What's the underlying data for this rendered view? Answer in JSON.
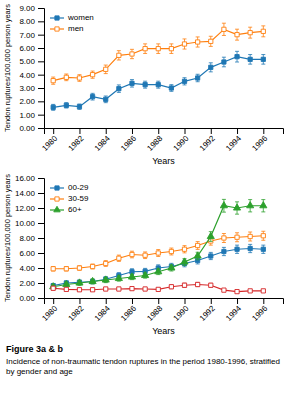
{
  "chart_data": [
    {
      "type": "line",
      "xlabel": "Years",
      "ylabel": "Tendon ruptures/100,000 person years",
      "x": [
        1980,
        1981,
        1982,
        1983,
        1984,
        1985,
        1986,
        1987,
        1988,
        1989,
        1990,
        1991,
        1992,
        1993,
        1994,
        1995,
        1996
      ],
      "xlim": [
        1979.3,
        1997.5
      ],
      "xticks": [
        1980,
        1982,
        1984,
        1986,
        1988,
        1990,
        1992,
        1994,
        1996
      ],
      "ylim": [
        0,
        9
      ],
      "yticks": [
        {
          "value": 0,
          "label": "0.00"
        },
        {
          "value": 1,
          "label": "1.00"
        },
        {
          "value": 2,
          "label": "2.00"
        },
        {
          "value": 3,
          "label": "3.00"
        },
        {
          "value": 4,
          "label": "4.00"
        },
        {
          "value": 5,
          "label": "5.00"
        },
        {
          "value": 6,
          "label": "6.00"
        },
        {
          "value": 7,
          "label": "7.00"
        },
        {
          "value": 8,
          "label": "8.00"
        },
        {
          "value": 9,
          "label": "9.00"
        }
      ],
      "grid": false,
      "legend": "upper left",
      "series": [
        {
          "name": "women",
          "marker": "square",
          "values": [
            1.55,
            1.7,
            1.6,
            2.35,
            2.15,
            2.95,
            3.35,
            3.25,
            3.25,
            3.0,
            3.5,
            3.75,
            4.55,
            4.95,
            5.35,
            5.15,
            5.15
          ],
          "errors": [
            0.22,
            0.2,
            0.2,
            0.25,
            0.25,
            0.28,
            0.28,
            0.26,
            0.26,
            0.25,
            0.27,
            0.28,
            0.34,
            0.36,
            0.4,
            0.36,
            0.36
          ]
        },
        {
          "name": "men",
          "marker": "open-square",
          "values": [
            3.55,
            3.8,
            3.75,
            4.0,
            4.4,
            5.45,
            5.55,
            5.95,
            5.95,
            5.95,
            6.3,
            6.45,
            6.5,
            7.4,
            7.0,
            7.15,
            7.25
          ],
          "errors": [
            0.27,
            0.25,
            0.25,
            0.27,
            0.32,
            0.35,
            0.35,
            0.36,
            0.36,
            0.36,
            0.38,
            0.38,
            0.38,
            0.46,
            0.41,
            0.41,
            0.41
          ]
        }
      ]
    },
    {
      "type": "line",
      "xlabel": "Years",
      "ylabel": "Tendon ruptures/100,000 person years",
      "x": [
        1980,
        1981,
        1982,
        1983,
        1984,
        1985,
        1986,
        1987,
        1988,
        1989,
        1990,
        1991,
        1992,
        1993,
        1994,
        1995,
        1996
      ],
      "xlim": [
        1979.3,
        1997.5
      ],
      "xticks": [
        1980,
        1982,
        1984,
        1986,
        1988,
        1990,
        1992,
        1994,
        1996
      ],
      "ylim": [
        0,
        16
      ],
      "yticks": [
        {
          "value": 0,
          "label": "0.00"
        },
        {
          "value": 2,
          "label": "2.00"
        },
        {
          "value": 4,
          "label": "4.00"
        },
        {
          "value": 6,
          "label": "6.00"
        },
        {
          "value": 8,
          "label": "8.00"
        },
        {
          "value": 10,
          "label": "10.00"
        },
        {
          "value": 12,
          "label": "12.00"
        },
        {
          "value": 14,
          "label": "14.00"
        },
        {
          "value": 16,
          "label": "16.00"
        }
      ],
      "grid": false,
      "legend": "upper left",
      "series": [
        {
          "name": "00-29",
          "marker": "square",
          "values": [
            1.65,
            2.0,
            2.1,
            2.2,
            2.5,
            3.0,
            3.5,
            3.55,
            4.0,
            4.2,
            4.6,
            5.0,
            5.6,
            6.2,
            6.5,
            6.6,
            6.5
          ],
          "errors": [
            0.28,
            0.28,
            0.28,
            0.3,
            0.35,
            0.38,
            0.4,
            0.4,
            0.42,
            0.42,
            0.44,
            0.46,
            0.48,
            0.55,
            0.55,
            0.55,
            0.55
          ]
        },
        {
          "name": "30-59",
          "marker": "open-square",
          "values": [
            3.9,
            3.9,
            4.0,
            4.2,
            4.6,
            5.3,
            5.8,
            5.7,
            6.0,
            6.2,
            6.5,
            7.0,
            7.6,
            8.0,
            8.1,
            8.2,
            8.3
          ],
          "errors": [
            0.3,
            0.3,
            0.3,
            0.32,
            0.38,
            0.42,
            0.44,
            0.44,
            0.46,
            0.46,
            0.48,
            0.52,
            0.55,
            0.6,
            0.6,
            0.6,
            0.6
          ]
        },
        {
          "name": "60+",
          "marker": "triangle",
          "values": [
            1.5,
            1.8,
            2.0,
            2.2,
            2.4,
            2.6,
            2.8,
            3.0,
            3.5,
            4.0,
            4.8,
            5.6,
            8.2,
            12.3,
            12.0,
            12.3,
            12.3
          ],
          "errors": [
            0.3,
            0.3,
            0.32,
            0.32,
            0.35,
            0.35,
            0.35,
            0.35,
            0.38,
            0.4,
            0.45,
            0.5,
            0.65,
            0.85,
            0.82,
            0.82,
            0.82
          ]
        },
        {
          "marker": "open-square",
          "values": [
            1.3,
            1.15,
            1.1,
            1.1,
            1.2,
            1.2,
            1.25,
            1.2,
            1.15,
            1.5,
            1.7,
            1.8,
            1.7,
            1.05,
            0.85,
            0.95,
            0.95
          ],
          "errors": [
            0.25,
            0.22,
            0.22,
            0.22,
            0.22,
            0.22,
            0.22,
            0.22,
            0.22,
            0.26,
            0.28,
            0.28,
            0.26,
            0.2,
            0.18,
            0.2,
            0.2
          ]
        }
      ],
      "annotations": [
        "Figure 3a & b",
        "Incidence of non-traumatic tendon ruptures in the period 1980-1996, stratified by gender and age"
      ]
    }
  ]
}
